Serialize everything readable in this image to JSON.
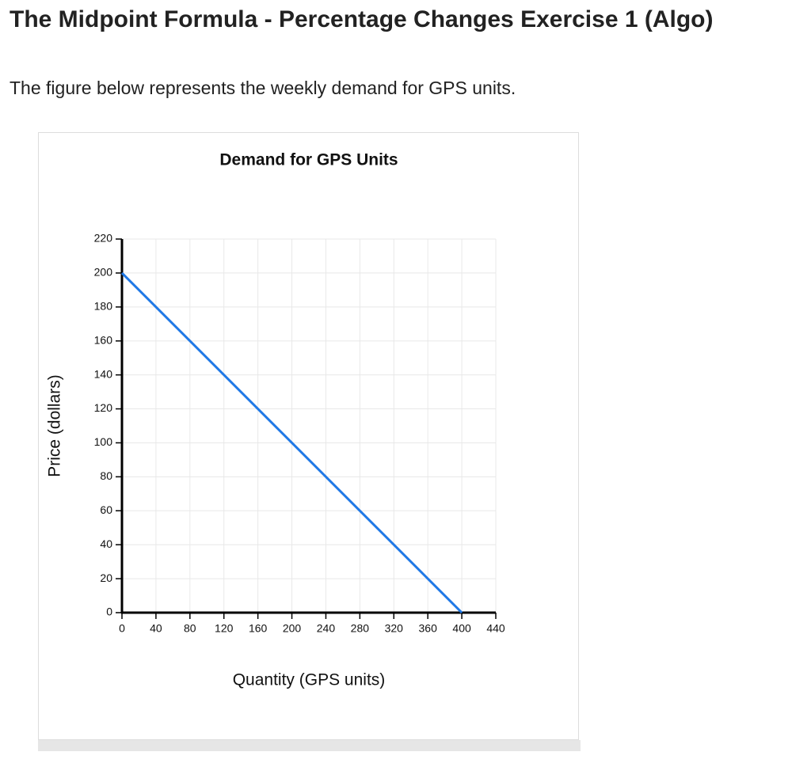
{
  "header": {
    "title": "The Midpoint Formula - Percentage Changes Exercise 1 (Algo)"
  },
  "intro": "The figure below represents the weekly demand for GPS units.",
  "chart_data": {
    "type": "line",
    "title": "Demand for GPS Units",
    "x_label": "Quantity (GPS units)",
    "y_label": "Price (dollars)",
    "x": [
      0,
      400
    ],
    "series": [
      {
        "color": "#1f78e6",
        "values": [
          200,
          0
        ]
      }
    ],
    "xlim": [
      0,
      440
    ],
    "ylim": [
      0,
      220
    ],
    "xticks": [
      0,
      40,
      80,
      120,
      160,
      200,
      240,
      280,
      320,
      360,
      400,
      440
    ],
    "yticks": [
      0,
      20,
      40,
      60,
      80,
      100,
      120,
      140,
      160,
      180,
      200,
      220
    ],
    "grid": true
  }
}
